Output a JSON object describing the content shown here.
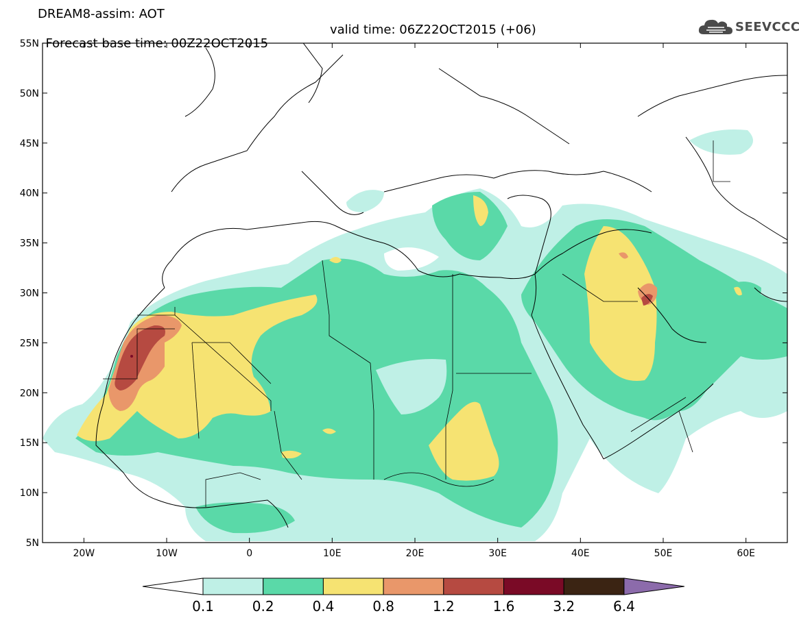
{
  "header": {
    "line1": "DREAM8-assim: AOT",
    "line2_left": "Forecast base time: 00Z22OCT2015",
    "line2_right": "valid time: 06Z22OCT2015 (+06)"
  },
  "logo": {
    "text": "SEEVCCC",
    "icon": "cloud-icon",
    "color": "#4a4a4a"
  },
  "map": {
    "lon_range": [
      -25,
      65
    ],
    "lat_range": [
      5,
      55
    ],
    "lat_ticks": [
      {
        "value": 55,
        "label": "55N"
      },
      {
        "value": 50,
        "label": "50N"
      },
      {
        "value": 45,
        "label": "45N"
      },
      {
        "value": 40,
        "label": "40N"
      },
      {
        "value": 35,
        "label": "35N"
      },
      {
        "value": 30,
        "label": "30N"
      },
      {
        "value": 25,
        "label": "25N"
      },
      {
        "value": 20,
        "label": "20N"
      },
      {
        "value": 15,
        "label": "15N"
      },
      {
        "value": 10,
        "label": "10N"
      },
      {
        "value": 5,
        "label": "5N"
      }
    ],
    "lon_ticks": [
      {
        "value": -20,
        "label": "20W"
      },
      {
        "value": -10,
        "label": "10W"
      },
      {
        "value": 0,
        "label": "0"
      },
      {
        "value": 10,
        "label": "10E"
      },
      {
        "value": 20,
        "label": "20E"
      },
      {
        "value": 30,
        "label": "30E"
      },
      {
        "value": 40,
        "label": "40E"
      },
      {
        "value": 50,
        "label": "50E"
      },
      {
        "value": 60,
        "label": "60E"
      }
    ]
  },
  "colorbar": {
    "levels": [
      "0.1",
      "0.2",
      "0.4",
      "0.8",
      "1.2",
      "1.6",
      "3.2",
      "6.4"
    ],
    "colors": [
      "#ffffff",
      "#bff0e6",
      "#5ad9a8",
      "#f6e372",
      "#e9976a",
      "#b64a41",
      "#7a0a26",
      "#3b2413",
      "#8c6bab"
    ]
  }
}
